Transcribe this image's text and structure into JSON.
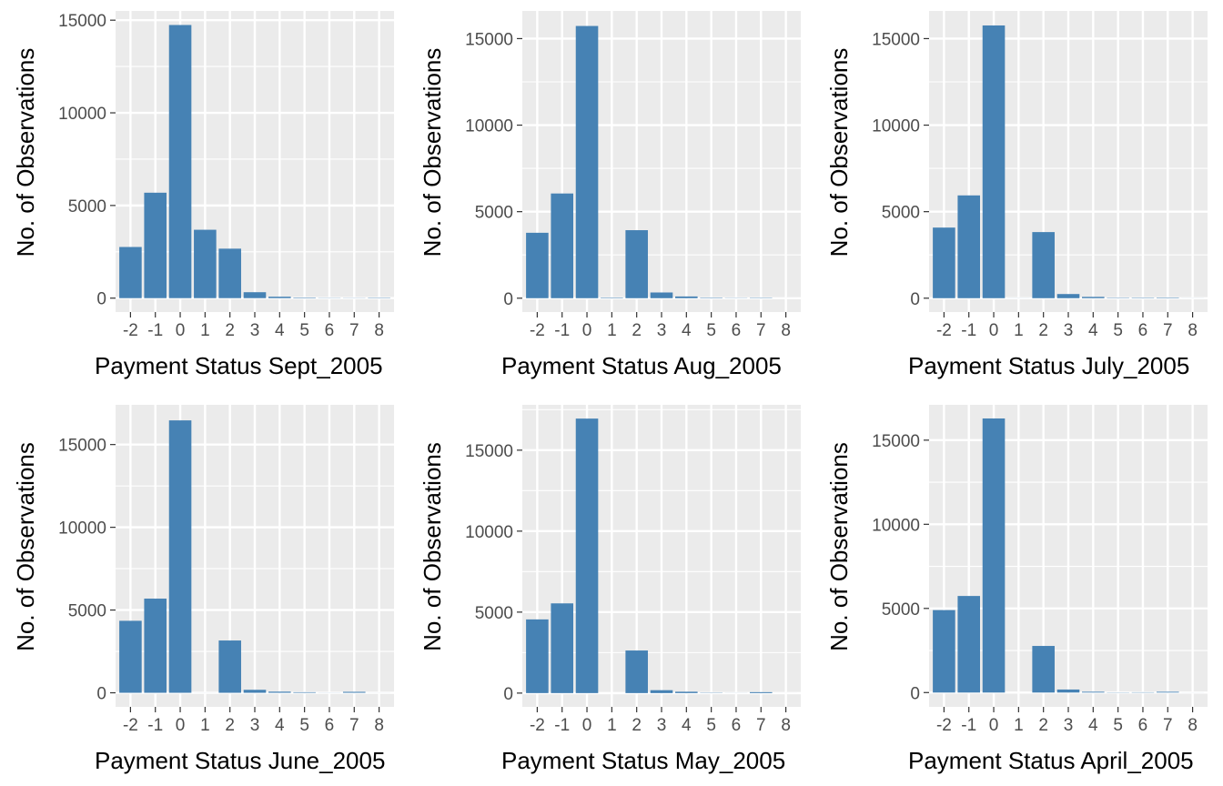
{
  "chart_data": [
    {
      "type": "bar",
      "xlabel": "Payment Status Sept_2005",
      "ylabel": "No. of Observations",
      "categories": [
        "-2",
        "-1",
        "0",
        "1",
        "2",
        "3",
        "4",
        "5",
        "6",
        "7",
        "8"
      ],
      "values": [
        2760,
        5690,
        14740,
        3690,
        2670,
        320,
        76,
        26,
        11,
        9,
        19
      ],
      "yticks": [
        0,
        5000,
        10000,
        15000
      ],
      "ylim": [
        -750,
        15500
      ],
      "grid": true,
      "colors": {
        "bar": "#4682B4",
        "panel": "#EBEBEB",
        "grid": "#FFFFFF"
      }
    },
    {
      "type": "bar",
      "xlabel": "Payment Status Aug_2005",
      "ylabel": "No. of Observations",
      "categories": [
        "-2",
        "-1",
        "0",
        "1",
        "2",
        "3",
        "4",
        "5",
        "6",
        "7",
        "8"
      ],
      "values": [
        3780,
        6050,
        15730,
        28,
        3930,
        330,
        100,
        25,
        12,
        20,
        1
      ],
      "yticks": [
        0,
        5000,
        10000,
        15000
      ],
      "ylim": [
        -800,
        16600
      ],
      "grid": true,
      "colors": {
        "bar": "#4682B4",
        "panel": "#EBEBEB",
        "grid": "#FFFFFF"
      }
    },
    {
      "type": "bar",
      "xlabel": "Payment Status July_2005",
      "ylabel": "No. of Observations",
      "categories": [
        "-2",
        "-1",
        "0",
        "1",
        "2",
        "3",
        "4",
        "5",
        "6",
        "7",
        "8"
      ],
      "values": [
        4080,
        5940,
        15760,
        4,
        3820,
        240,
        76,
        21,
        23,
        27,
        3
      ],
      "yticks": [
        0,
        5000,
        10000,
        15000
      ],
      "ylim": [
        -800,
        16600
      ],
      "grid": true,
      "colors": {
        "bar": "#4682B4",
        "panel": "#EBEBEB",
        "grid": "#FFFFFF"
      }
    },
    {
      "type": "bar",
      "xlabel": "Payment Status June_2005",
      "ylabel": "No. of Observations",
      "categories": [
        "-2",
        "-1",
        "0",
        "1",
        "2",
        "3",
        "4",
        "5",
        "6",
        "7",
        "8"
      ],
      "values": [
        4350,
        5690,
        16460,
        2,
        3160,
        180,
        69,
        35,
        5,
        58,
        2
      ],
      "yticks": [
        0,
        5000,
        10000,
        15000
      ],
      "ylim": [
        -850,
        17400
      ],
      "grid": true,
      "colors": {
        "bar": "#4682B4",
        "panel": "#EBEBEB",
        "grid": "#FFFFFF"
      }
    },
    {
      "type": "bar",
      "xlabel": "Payment Status May_2005",
      "ylabel": "No. of Observations",
      "categories": [
        "-2",
        "-1",
        "0",
        "2",
        "3",
        "4",
        "5",
        "6",
        "7",
        "8"
      ],
      "values": [
        4550,
        5540,
        16950,
        2630,
        180,
        84,
        17,
        4,
        58,
        1
      ],
      "yticks": [
        0,
        5000,
        10000,
        15000
      ],
      "ylim": [
        -850,
        17800
      ],
      "grid": true,
      "colors": {
        "bar": "#4682B4",
        "panel": "#EBEBEB",
        "grid": "#FFFFFF"
      }
    },
    {
      "type": "bar",
      "xlabel": "Payment Status April_2005",
      "ylabel": "No. of Observations",
      "categories": [
        "-2",
        "-1",
        "0",
        "2",
        "3",
        "4",
        "5",
        "6",
        "7",
        "8"
      ],
      "values": [
        4900,
        5740,
        16290,
        2770,
        180,
        49,
        13,
        19,
        46,
        2
      ],
      "yticks": [
        0,
        5000,
        10000,
        15000
      ],
      "ylim": [
        -850,
        17100
      ],
      "grid": true,
      "colors": {
        "bar": "#4682B4",
        "panel": "#EBEBEB",
        "grid": "#FFFFFF"
      }
    }
  ]
}
